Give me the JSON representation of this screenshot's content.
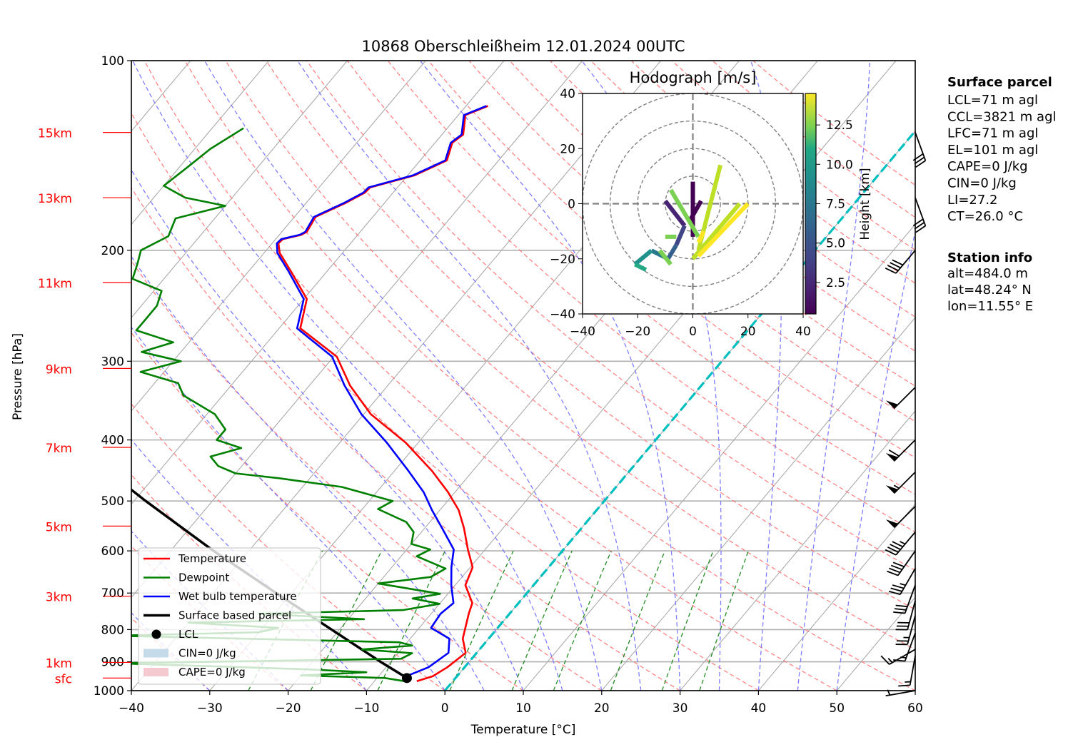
{
  "chart_data": {
    "type": "line",
    "subtype": "skew-t log-p",
    "title": "10868 Oberschleißheim 12.01.2024 00UTC",
    "xlabel": "Temperature [°C]",
    "ylabel": "Pressure [hPa]",
    "xlim": [
      -40,
      60
    ],
    "ylim": [
      1000,
      100
    ],
    "x_ticks": [
      "−40",
      "−30",
      "−20",
      "−10",
      "0",
      "10",
      "20",
      "30",
      "40",
      "50",
      "60"
    ],
    "x_tick_values": [
      -40,
      -30,
      -20,
      -10,
      0,
      10,
      20,
      30,
      40,
      50,
      60
    ],
    "y_ticks": [
      "100",
      "200",
      "300",
      "400",
      "500",
      "600",
      "700",
      "800",
      "900",
      "1000"
    ],
    "y_tick_values": [
      100,
      200,
      300,
      400,
      500,
      600,
      700,
      800,
      900,
      1000
    ],
    "height_labels": [
      {
        "label": "15km",
        "p": 130
      },
      {
        "label": "13km",
        "p": 165
      },
      {
        "label": "11km",
        "p": 225
      },
      {
        "label": "9km",
        "p": 308
      },
      {
        "label": "7km",
        "p": 411
      },
      {
        "label": "5km",
        "p": 548
      },
      {
        "label": "3km",
        "p": 708
      },
      {
        "label": "1km",
        "p": 902
      },
      {
        "label": "sfc",
        "p": 955
      }
    ],
    "grid": true,
    "legend_position": "bottom-left",
    "legend": [
      {
        "label": "Temperature",
        "kind": "line",
        "color": "#ff0000"
      },
      {
        "label": "Dewpoint",
        "kind": "line",
        "color": "#008000"
      },
      {
        "label": "Wet bulb temperature",
        "kind": "line",
        "color": "#0000ff"
      },
      {
        "label": "Surface based parcel",
        "kind": "line",
        "color": "#000000"
      },
      {
        "label": "LCL",
        "kind": "dot",
        "color": "#000000"
      },
      {
        "label": "CIN=0 J/kg",
        "kind": "patch",
        "color": "#c6dbe9"
      },
      {
        "label": "CAPE=0 J/kg",
        "kind": "patch",
        "color": "#f4c9cf"
      }
    ],
    "series": [
      {
        "name": "Temperature",
        "color": "#ff0000",
        "points": [
          [
            966,
            -4.6
          ],
          [
            949,
            -3.1
          ],
          [
            918,
            -2.2
          ],
          [
            871,
            -1.4
          ],
          [
            827,
            -3.3
          ],
          [
            755,
            -5.2
          ],
          [
            726,
            -5.9
          ],
          [
            680,
            -8.7
          ],
          [
            637,
            -9.7
          ],
          [
            597,
            -12.2
          ],
          [
            552,
            -15.0
          ],
          [
            517,
            -17.6
          ],
          [
            484,
            -20.9
          ],
          [
            448,
            -25.2
          ],
          [
            404,
            -31.6
          ],
          [
            364,
            -39.1
          ],
          [
            328,
            -44.8
          ],
          [
            295,
            -49.6
          ],
          [
            266,
            -57.3
          ],
          [
            239,
            -59.6
          ],
          [
            216,
            -64.6
          ],
          [
            202,
            -68.0
          ],
          [
            195,
            -69.2
          ],
          [
            192,
            -69.1
          ],
          [
            189,
            -67.2
          ],
          [
            187,
            -66.8
          ],
          [
            177,
            -67.3
          ],
          [
            168,
            -64.9
          ],
          [
            162,
            -63.6
          ],
          [
            159,
            -63.5
          ],
          [
            152,
            -59.1
          ],
          [
            144,
            -56.6
          ],
          [
            135,
            -57.8
          ],
          [
            131,
            -57.3
          ],
          [
            122,
            -59.1
          ],
          [
            118,
            -57.2
          ]
        ]
      },
      {
        "name": "Wet bulb temperature",
        "color": "#0000ff",
        "points": [
          [
            966,
            -5.5
          ],
          [
            949,
            -6.5
          ],
          [
            918,
            -4.6
          ],
          [
            871,
            -3.6
          ],
          [
            827,
            -5.0
          ],
          [
            795,
            -8.5
          ],
          [
            755,
            -8.8
          ],
          [
            726,
            -8.3
          ],
          [
            680,
            -10.5
          ],
          [
            637,
            -12.4
          ],
          [
            597,
            -14.0
          ],
          [
            552,
            -17.8
          ],
          [
            517,
            -21.0
          ],
          [
            484,
            -24.0
          ],
          [
            448,
            -28.2
          ],
          [
            404,
            -34.0
          ],
          [
            364,
            -40.3
          ],
          [
            328,
            -45.5
          ],
          [
            295,
            -50.2
          ],
          [
            266,
            -57.7
          ],
          [
            239,
            -60.0
          ],
          [
            216,
            -64.9
          ],
          [
            202,
            -68.3
          ],
          [
            195,
            -69.4
          ],
          [
            192,
            -69.3
          ],
          [
            189,
            -67.4
          ],
          [
            187,
            -67.0
          ],
          [
            177,
            -67.5
          ],
          [
            168,
            -65.1
          ],
          [
            162,
            -63.8
          ],
          [
            159,
            -63.7
          ],
          [
            152,
            -59.3
          ],
          [
            144,
            -56.8
          ],
          [
            135,
            -58.0
          ],
          [
            131,
            -57.5
          ],
          [
            122,
            -59.3
          ],
          [
            118,
            -57.4
          ]
        ]
      },
      {
        "name": "Dewpoint",
        "color": "#008000",
        "points": [
          [
            966,
            -6.2
          ],
          [
            955,
            -9
          ],
          [
            946,
            -20
          ],
          [
            935,
            -12
          ],
          [
            925,
            -20
          ],
          [
            915,
            -32
          ],
          [
            905,
            -45
          ],
          [
            890,
            -9.0
          ],
          [
            872,
            -8.2
          ],
          [
            860,
            -15
          ],
          [
            848,
            -9
          ],
          [
            838,
            -11
          ],
          [
            818,
            -48
          ],
          [
            808,
            -30
          ],
          [
            795,
            -28
          ],
          [
            780,
            -40
          ],
          [
            770,
            -18
          ],
          [
            755,
            -32
          ],
          [
            745,
            -14
          ],
          [
            728,
            -10
          ],
          [
            714,
            -14
          ],
          [
            702,
            -11
          ],
          [
            676,
            -20
          ],
          [
            660,
            -14
          ],
          [
            640,
            -13
          ],
          [
            612,
            -18
          ],
          [
            597,
            -17
          ],
          [
            585,
            -20
          ],
          [
            560,
            -21
          ],
          [
            540,
            -23
          ],
          [
            515,
            -28
          ],
          [
            500,
            -27
          ],
          [
            475,
            -35
          ],
          [
            460,
            -44
          ],
          [
            452,
            -50
          ],
          [
            440,
            -53
          ],
          [
            425,
            -55
          ],
          [
            412,
            -52
          ],
          [
            400,
            -56
          ],
          [
            385,
            -56
          ],
          [
            364,
            -59
          ],
          [
            340,
            -65
          ],
          [
            325,
            -67
          ],
          [
            312,
            -73
          ],
          [
            300,
            -69
          ],
          [
            290,
            -75
          ],
          [
            280,
            -72
          ],
          [
            268,
            -78
          ],
          [
            258,
            -78
          ],
          [
            245,
            -78
          ],
          [
            232,
            -79
          ],
          [
            222,
            -84
          ],
          [
            210,
            -85
          ],
          [
            200,
            -86
          ],
          [
            190,
            -84
          ],
          [
            178,
            -85
          ],
          [
            170,
            -80
          ],
          [
            165,
            -86
          ],
          [
            158,
            -90
          ],
          [
            148,
            -89
          ],
          [
            138,
            -88
          ],
          [
            128,
            -86
          ]
        ]
      },
      {
        "name": "Surface based parcel",
        "color": "#000000",
        "points": [
          [
            955,
            -6.2
          ],
          [
            900,
            -11.3
          ],
          [
            800,
            -21.0
          ],
          [
            700,
            -32.0
          ],
          [
            600,
            -44.5
          ],
          [
            500,
            -58.5
          ],
          [
            400,
            -75.0
          ],
          [
            330,
            -88.4
          ]
        ]
      }
    ],
    "lcl_point": {
      "p": 955,
      "T": -6.2
    },
    "zero_isotherm_line": {
      "color": "#00bfbf",
      "T": 0
    },
    "hodograph": {
      "title": "Hodograph [m/s]",
      "xlim": [
        -40,
        40
      ],
      "ylim": [
        -40,
        40
      ],
      "x_ticks": [
        "−40",
        "−20",
        "0",
        "20",
        "40"
      ],
      "y_ticks": [
        "40",
        "20",
        "0",
        "−20",
        "−40"
      ],
      "rings": [
        10,
        20,
        30,
        40
      ],
      "colorbar_label": "Height [km]",
      "colorbar_ticks": [
        "2.5",
        "5.0",
        "7.5",
        "10.0",
        "12.5"
      ],
      "colorbar_range": [
        0.5,
        14.5
      ],
      "segments": [
        {
          "h": 0.6,
          "u": [
            0,
            0
          ],
          "v": [
            8,
            -12
          ]
        },
        {
          "h": 1.2,
          "u": [
            -1,
            3
          ],
          "v": [
            -6,
            1
          ]
        },
        {
          "h": 2.0,
          "u": [
            -10,
            -3
          ],
          "v": [
            1,
            -8
          ]
        },
        {
          "h": 3.0,
          "u": [
            -3,
            -6
          ],
          "v": [
            -8,
            -15
          ]
        },
        {
          "h": 4.0,
          "u": [
            -6,
            -9
          ],
          "v": [
            -15,
            -20
          ]
        },
        {
          "h": 6.0,
          "u": [
            -9,
            -15
          ],
          "v": [
            -20,
            -17
          ]
        },
        {
          "h": 8.0,
          "u": [
            -15,
            -21
          ],
          "v": [
            -17,
            -22
          ]
        },
        {
          "h": 9.5,
          "u": [
            -21,
            -17
          ],
          "v": [
            -22,
            -24
          ]
        },
        {
          "h": 11.0,
          "u": [
            -12,
            -8
          ],
          "v": [
            -17,
            -22
          ]
        },
        {
          "h": 11.5,
          "u": [
            -10,
            -6
          ],
          "v": [
            -12,
            -12
          ]
        },
        {
          "h": 12.0,
          "u": [
            -8,
            2
          ],
          "v": [
            5,
            -12
          ]
        },
        {
          "h": 13.0,
          "u": [
            10,
            2
          ],
          "v": [
            14,
            -17
          ]
        },
        {
          "h": 13.5,
          "u": [
            17,
            0
          ],
          "v": [
            0,
            -20
          ]
        },
        {
          "h": 13.8,
          "u": [
            20,
            2
          ],
          "v": [
            0,
            -19
          ]
        },
        {
          "h": 14.3,
          "u": [
            2,
            4
          ],
          "v": [
            -14,
            -10
          ]
        }
      ]
    },
    "wind_barbs": [
      {
        "p": 1000,
        "speed_kt": 5,
        "dir": 260
      },
      {
        "p": 880,
        "speed_kt": 15,
        "dir": 190
      },
      {
        "p": 860,
        "speed_kt": 15,
        "dir": 240
      },
      {
        "p": 810,
        "speed_kt": 15,
        "dir": 200
      },
      {
        "p": 760,
        "speed_kt": 25,
        "dir": 195
      },
      {
        "p": 720,
        "speed_kt": 30,
        "dir": 195
      },
      {
        "p": 680,
        "speed_kt": 30,
        "dir": 200
      },
      {
        "p": 640,
        "speed_kt": 35,
        "dir": 210
      },
      {
        "p": 600,
        "speed_kt": 40,
        "dir": 215
      },
      {
        "p": 560,
        "speed_kt": 45,
        "dir": 220
      },
      {
        "p": 510,
        "speed_kt": 50,
        "dir": 225
      },
      {
        "p": 450,
        "speed_kt": 55,
        "dir": 225
      },
      {
        "p": 400,
        "speed_kt": 60,
        "dir": 225
      },
      {
        "p": 330,
        "speed_kt": 50,
        "dir": 225
      },
      {
        "p": 200,
        "speed_kt": 40,
        "dir": 220
      },
      {
        "p": 165,
        "speed_kt": 30,
        "dir": 160
      },
      {
        "p": 130,
        "speed_kt": 30,
        "dir": 160
      }
    ]
  },
  "side_panel": {
    "surface_parcel_title": "Surface parcel",
    "surface_parcel": [
      "LCL=71 m agl",
      "CCL=3821 m agl",
      "LFC=71 m agl",
      "EL=101 m agl",
      "CAPE=0 J/kg",
      "CIN=0 J/kg",
      "LI=27.2",
      "CT=26.0 °C"
    ],
    "station_info_title": "Station info",
    "station_info": [
      "alt=484.0 m",
      "lat=48.24° N",
      "lon=11.55° E"
    ]
  }
}
